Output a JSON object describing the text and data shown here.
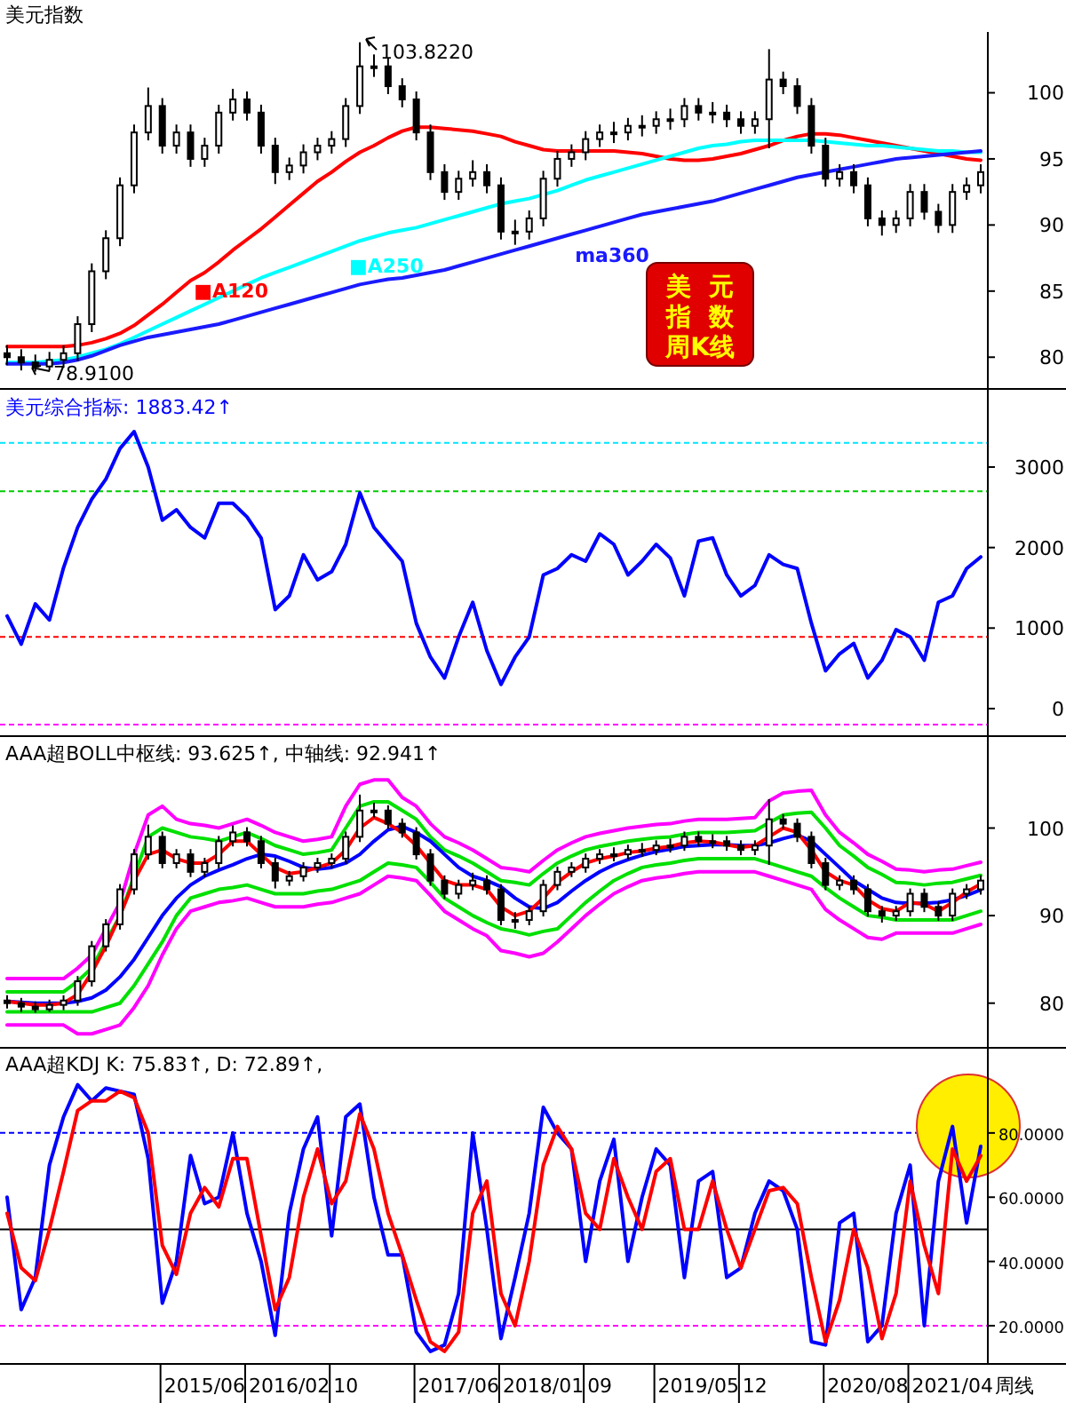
{
  "chart_data": [
    {
      "type": "candlestick",
      "title": "美元指数",
      "tick_labels": "y",
      "ylim": [
        77.6,
        104.6
      ],
      "yticks": [
        80,
        85,
        90,
        95,
        100
      ],
      "categories": [
        null,
        null,
        null,
        null,
        null,
        null,
        null,
        null,
        null,
        null,
        null,
        null,
        null,
        null,
        null,
        null,
        null,
        null,
        null,
        null,
        null,
        null,
        null,
        null,
        null,
        null,
        null,
        null,
        null,
        null,
        null,
        null,
        null,
        null,
        null,
        null,
        null,
        null,
        null,
        null,
        null,
        null,
        null,
        null,
        null,
        null,
        null,
        null,
        null,
        null,
        null,
        null,
        null,
        null,
        null,
        null,
        null,
        null,
        null,
        null,
        null,
        null,
        null,
        null,
        null,
        null,
        null,
        null,
        null,
        null
      ],
      "ohlc": [
        [
          80.3,
          80.9,
          79.4,
          80.0
        ],
        [
          80.0,
          80.6,
          79.0,
          79.6
        ],
        [
          79.6,
          80.2,
          78.91,
          79.3
        ],
        [
          79.3,
          80.4,
          79.0,
          79.8
        ],
        [
          79.8,
          80.9,
          79.2,
          80.3
        ],
        [
          80.3,
          83.1,
          79.7,
          82.5
        ],
        [
          82.5,
          87.1,
          81.9,
          86.5
        ],
        [
          86.5,
          89.6,
          85.9,
          89
        ],
        [
          89,
          93.6,
          88.4,
          93
        ],
        [
          93,
          97.6,
          92.4,
          97
        ],
        [
          97,
          100.4,
          96.4,
          99
        ],
        [
          99,
          99.6,
          95.4,
          96
        ],
        [
          96,
          97.6,
          95.4,
          97
        ],
        [
          97,
          97.6,
          94.4,
          95
        ],
        [
          95,
          96.6,
          94.4,
          96
        ],
        [
          96,
          99.1,
          95.4,
          98.5
        ],
        [
          98.5,
          100.3,
          97.9,
          99.5
        ],
        [
          99.5,
          100.1,
          97.9,
          98.5
        ],
        [
          98.5,
          99.1,
          95.4,
          96
        ],
        [
          96,
          96.6,
          93.1,
          94
        ],
        [
          94,
          95.1,
          93.4,
          94.5
        ],
        [
          94.5,
          96.1,
          93.9,
          95.5
        ],
        [
          95.5,
          96.6,
          94.9,
          96
        ],
        [
          96,
          97.1,
          95.4,
          96.5
        ],
        [
          96.5,
          99.6,
          95.9,
          99
        ],
        [
          99,
          103.822,
          98.4,
          102
        ],
        [
          102,
          102.9,
          101.2,
          102
        ],
        [
          102,
          102.6,
          99.9,
          100.5
        ],
        [
          100.5,
          101.1,
          98.9,
          99.5
        ],
        [
          99.5,
          100.1,
          96.4,
          97
        ],
        [
          97,
          97.6,
          93.4,
          94
        ],
        [
          94,
          94.6,
          91.9,
          92.5
        ],
        [
          92.5,
          94.1,
          91.9,
          93.5
        ],
        [
          93.5,
          94.9,
          92.9,
          94
        ],
        [
          94,
          94.6,
          92.4,
          93
        ],
        [
          93,
          93.6,
          88.9,
          89.5
        ],
        [
          89.5,
          90.4,
          88.5,
          89.5
        ],
        [
          89.5,
          91.1,
          88.9,
          90.5
        ],
        [
          90.5,
          94.1,
          89.9,
          93.5
        ],
        [
          93.5,
          95.6,
          92.9,
          95
        ],
        [
          95,
          96.1,
          94.4,
          95.5
        ],
        [
          95.5,
          97.1,
          94.9,
          96.5
        ],
        [
          96.5,
          97.6,
          95.9,
          97
        ],
        [
          97,
          97.8,
          96.2,
          97
        ],
        [
          97,
          98.1,
          96.4,
          97.5
        ],
        [
          97.5,
          98.3,
          96.7,
          97.5
        ],
        [
          97.5,
          98.6,
          96.9,
          98
        ],
        [
          98,
          98.8,
          97.2,
          98
        ],
        [
          98,
          99.6,
          97.4,
          99
        ],
        [
          99,
          99.6,
          97.9,
          98.5
        ],
        [
          98.5,
          99.3,
          97.7,
          98.5
        ],
        [
          98.5,
          99.1,
          97.4,
          98
        ],
        [
          98,
          98.6,
          96.9,
          97.5
        ],
        [
          97.5,
          98.6,
          96.9,
          98
        ],
        [
          98,
          103.3,
          95.8,
          101
        ],
        [
          101,
          101.6,
          99.9,
          100.5
        ],
        [
          100.5,
          101.1,
          98.4,
          99
        ],
        [
          99,
          99.6,
          95.4,
          96
        ],
        [
          96,
          96.6,
          92.9,
          93.5
        ],
        [
          93.5,
          94.6,
          92.9,
          94
        ],
        [
          94,
          94.6,
          92.4,
          93
        ],
        [
          93,
          93.6,
          89.9,
          90.5
        ],
        [
          90.5,
          91.1,
          89.2,
          90
        ],
        [
          90,
          91.1,
          89.4,
          90.5
        ],
        [
          90.5,
          93.1,
          89.9,
          92.5
        ],
        [
          92.5,
          93.1,
          90.4,
          91
        ],
        [
          91,
          91.6,
          89.4,
          90
        ],
        [
          90,
          93.1,
          89.4,
          92.5
        ],
        [
          92.5,
          93.6,
          91.9,
          93
        ],
        [
          93,
          94.6,
          92.4,
          94
        ]
      ],
      "series": [
        {
          "type": "line",
          "name": "■A120",
          "color": "#ff0000",
          "values": [
            80.8,
            80.8,
            80.8,
            80.8,
            80.8,
            80.9,
            81.1,
            81.4,
            81.8,
            82.4,
            83.2,
            84.0,
            84.9,
            85.8,
            86.4,
            87.2,
            88.1,
            88.9,
            89.7,
            90.6,
            91.5,
            92.4,
            93.3,
            94.0,
            94.8,
            95.5,
            96.0,
            96.6,
            97.1,
            97.4,
            97.4,
            97.3,
            97.2,
            97.1,
            96.9,
            96.7,
            96.3,
            96.0,
            95.7,
            95.6,
            95.6,
            95.6,
            95.6,
            95.6,
            95.5,
            95.4,
            95.2,
            95.0,
            94.9,
            94.9,
            95.0,
            95.2,
            95.4,
            95.7,
            96.0,
            96.4,
            96.7,
            96.9,
            96.9,
            96.8,
            96.6,
            96.4,
            96.2,
            96.0,
            95.8,
            95.6,
            95.4,
            95.2,
            95.0,
            94.9
          ]
        },
        {
          "type": "line",
          "name": "■A250",
          "color": "#00ffff",
          "values": [
            79.6,
            79.6,
            79.6,
            79.7,
            79.8,
            80.0,
            80.3,
            80.6,
            81.0,
            81.5,
            82.0,
            82.5,
            83.0,
            83.5,
            84.0,
            84.5,
            85.0,
            85.5,
            86.0,
            86.4,
            86.8,
            87.2,
            87.6,
            88.0,
            88.4,
            88.8,
            89.1,
            89.4,
            89.6,
            89.8,
            90.1,
            90.4,
            90.7,
            91.0,
            91.3,
            91.6,
            91.8,
            92.0,
            92.3,
            92.6,
            93.0,
            93.4,
            93.7,
            94.0,
            94.3,
            94.6,
            94.9,
            95.2,
            95.5,
            95.8,
            96.0,
            96.1,
            96.3,
            96.4,
            96.4,
            96.4,
            96.4,
            96.4,
            96.3,
            96.2,
            96.1,
            96.0,
            96.0,
            95.9,
            95.8,
            95.7,
            95.6,
            95.6,
            95.5,
            95.5
          ]
        },
        {
          "type": "line",
          "name": "ma360",
          "color": "#1a1aff",
          "values": [
            79.5,
            79.5,
            79.5,
            79.5,
            79.6,
            79.8,
            80.1,
            80.5,
            80.9,
            81.2,
            81.5,
            81.7,
            81.9,
            82.1,
            82.3,
            82.5,
            82.8,
            83.1,
            83.4,
            83.7,
            84.0,
            84.3,
            84.6,
            84.9,
            85.2,
            85.5,
            85.7,
            85.9,
            86.0,
            86.2,
            86.4,
            86.6,
            86.9,
            87.2,
            87.5,
            87.8,
            88.1,
            88.4,
            88.7,
            89.0,
            89.3,
            89.6,
            89.9,
            90.2,
            90.5,
            90.8,
            91.0,
            91.2,
            91.4,
            91.6,
            91.8,
            92.1,
            92.4,
            92.7,
            93.0,
            93.3,
            93.6,
            93.8,
            94.0,
            94.2,
            94.4,
            94.6,
            94.8,
            95.0,
            95.1,
            95.2,
            95.3,
            95.4,
            95.5,
            95.6
          ]
        }
      ],
      "annotations": [
        "103.8220",
        "78.9100",
        "美元指数周K线"
      ]
    },
    {
      "type": "line",
      "title": "美元综合指标: 1883.42↑",
      "tick_labels": "y",
      "ylim": [
        -342,
        3970
      ],
      "yticks": [
        0,
        1000,
        2000,
        3000
      ],
      "categories": [
        null,
        null,
        null,
        null,
        null,
        null,
        null,
        null,
        null,
        null,
        null,
        null,
        null,
        null,
        null,
        null,
        null,
        null,
        null,
        null,
        null,
        null,
        null,
        null,
        null,
        null,
        null,
        null,
        null,
        null,
        null,
        null,
        null,
        null,
        null,
        null,
        null,
        null,
        null,
        null,
        null,
        null,
        null,
        null,
        null,
        null,
        null,
        null,
        null,
        null,
        null,
        null,
        null,
        null,
        null,
        null,
        null,
        null,
        null,
        null,
        null,
        null,
        null,
        null,
        null,
        null,
        null,
        null,
        null,
        null
      ],
      "series": [
        {
          "color": "#0000ff",
          "values": [
            1150,
            800,
            1300,
            1100,
            1750,
            2250,
            2600,
            2850,
            3230,
            3440,
            3000,
            2340,
            2470,
            2250,
            2120,
            2550,
            2550,
            2380,
            2120,
            1230,
            1400,
            1910,
            1600,
            1700,
            2040,
            2680,
            2250,
            2040,
            1830,
            1060,
            640,
            380,
            890,
            1320,
            720,
            300,
            640,
            890,
            1660,
            1740,
            1910,
            1830,
            2170,
            2040,
            1660,
            1830,
            2040,
            1870,
            1400,
            2080,
            2120,
            1660,
            1400,
            1530,
            1910,
            1790,
            1740,
            1060,
            470,
            680,
            810,
            380,
            600,
            980,
            890,
            600,
            1320,
            1400,
            1740,
            1883.42
          ]
        }
      ],
      "ref_lines": [
        {
          "axis": "y",
          "value": 3300,
          "color": "#00e5ff",
          "line_style": "dashed"
        },
        {
          "axis": "y",
          "value": 2700,
          "color": "#00cc00",
          "line_style": "dashed"
        },
        {
          "axis": "y",
          "value": 890,
          "color": "#ff0000",
          "line_style": "dashed"
        },
        {
          "axis": "y",
          "value": -200,
          "color": "#ff00ff",
          "line_style": "dashed"
        }
      ]
    },
    {
      "type": "candlestick",
      "title": "AAA超BOLL中枢线: 93.625↑, 中轴线: 92.941↑",
      "tick_labels": "y",
      "ylim": [
        74.9,
        110.5
      ],
      "yticks": [
        80,
        90,
        100
      ],
      "categories": [
        null,
        null,
        null,
        null,
        null,
        null,
        null,
        null,
        null,
        null,
        null,
        null,
        null,
        null,
        null,
        null,
        null,
        null,
        null,
        null,
        null,
        null,
        null,
        null,
        null,
        null,
        null,
        null,
        null,
        null,
        null,
        null,
        null,
        null,
        null,
        null,
        null,
        null,
        null,
        null,
        null,
        null,
        null,
        null,
        null,
        null,
        null,
        null,
        null,
        null,
        null,
        null,
        null,
        null,
        null,
        null,
        null,
        null,
        null,
        null,
        null,
        null,
        null,
        null,
        null,
        null,
        null,
        null,
        null,
        null
      ],
      "ohlc": [
        [
          80.3,
          80.9,
          79.4,
          80.0
        ],
        [
          80.0,
          80.6,
          79.0,
          79.6
        ],
        [
          79.6,
          80.2,
          78.91,
          79.3
        ],
        [
          79.3,
          80.4,
          79.0,
          79.8
        ],
        [
          79.8,
          80.9,
          79.2,
          80.3
        ],
        [
          80.3,
          83.1,
          79.7,
          82.5
        ],
        [
          82.5,
          87.1,
          81.9,
          86.5
        ],
        [
          86.5,
          89.6,
          85.9,
          89
        ],
        [
          89,
          93.6,
          88.4,
          93
        ],
        [
          93,
          97.6,
          92.4,
          97
        ],
        [
          97,
          100.4,
          96.4,
          99
        ],
        [
          99,
          99.6,
          95.4,
          96
        ],
        [
          96,
          97.6,
          95.4,
          97
        ],
        [
          97,
          97.6,
          94.4,
          95
        ],
        [
          95,
          96.6,
          94.4,
          96
        ],
        [
          96,
          99.1,
          95.4,
          98.5
        ],
        [
          98.5,
          100.3,
          97.9,
          99.5
        ],
        [
          99.5,
          100.1,
          97.9,
          98.5
        ],
        [
          98.5,
          99.1,
          95.4,
          96
        ],
        [
          96,
          96.6,
          93.1,
          94
        ],
        [
          94,
          95.1,
          93.4,
          94.5
        ],
        [
          94.5,
          96.1,
          93.9,
          95.5
        ],
        [
          95.5,
          96.6,
          94.9,
          96
        ],
        [
          96,
          97.1,
          95.4,
          96.5
        ],
        [
          96.5,
          99.6,
          95.9,
          99
        ],
        [
          99,
          103.822,
          98.4,
          102
        ],
        [
          102,
          102.9,
          101.2,
          102
        ],
        [
          102,
          102.6,
          99.9,
          100.5
        ],
        [
          100.5,
          101.1,
          98.9,
          99.5
        ],
        [
          99.5,
          100.1,
          96.4,
          97
        ],
        [
          97,
          97.6,
          93.4,
          94
        ],
        [
          94,
          94.6,
          91.9,
          92.5
        ],
        [
          92.5,
          94.1,
          91.9,
          93.5
        ],
        [
          93.5,
          94.9,
          92.9,
          94
        ],
        [
          94,
          94.6,
          92.4,
          93
        ],
        [
          93,
          93.6,
          88.9,
          89.5
        ],
        [
          89.5,
          90.4,
          88.5,
          89.5
        ],
        [
          89.5,
          91.1,
          88.9,
          90.5
        ],
        [
          90.5,
          94.1,
          89.9,
          93.5
        ],
        [
          93.5,
          95.6,
          92.9,
          95
        ],
        [
          95,
          96.1,
          94.4,
          95.5
        ],
        [
          95.5,
          97.1,
          94.9,
          96.5
        ],
        [
          96.5,
          97.6,
          95.9,
          97
        ],
        [
          97,
          97.8,
          96.2,
          97
        ],
        [
          97,
          98.1,
          96.4,
          97.5
        ],
        [
          97.5,
          98.3,
          96.7,
          97.5
        ],
        [
          97.5,
          98.6,
          96.9,
          98
        ],
        [
          98,
          98.8,
          97.2,
          98
        ],
        [
          98,
          99.6,
          97.4,
          99
        ],
        [
          99,
          99.6,
          97.9,
          98.5
        ],
        [
          98.5,
          99.3,
          97.7,
          98.5
        ],
        [
          98.5,
          99.1,
          97.4,
          98
        ],
        [
          98,
          98.6,
          96.9,
          97.5
        ],
        [
          97.5,
          98.6,
          96.9,
          98
        ],
        [
          98,
          103.3,
          95.8,
          101
        ],
        [
          101,
          101.6,
          99.9,
          100.5
        ],
        [
          100.5,
          101.1,
          98.4,
          99
        ],
        [
          99,
          99.6,
          95.4,
          96
        ],
        [
          96,
          96.6,
          92.9,
          93.5
        ],
        [
          93.5,
          94.6,
          92.9,
          94
        ],
        [
          94,
          94.6,
          92.4,
          93
        ],
        [
          93,
          93.6,
          89.9,
          90.5
        ],
        [
          90.5,
          91.1,
          89.2,
          90
        ],
        [
          90,
          91.1,
          89.4,
          90.5
        ],
        [
          90.5,
          93.1,
          89.9,
          92.5
        ],
        [
          92.5,
          93.1,
          90.4,
          91
        ],
        [
          91,
          91.6,
          89.4,
          90
        ],
        [
          90,
          93.1,
          89.4,
          92.5
        ],
        [
          92.5,
          93.6,
          91.9,
          93
        ],
        [
          93,
          94.6,
          92.4,
          94
        ]
      ],
      "series": [
        {
          "type": "line",
          "color": "#ff00ff",
          "values": [
            82.8,
            82.8,
            82.8,
            82.8,
            82.8,
            84,
            85.5,
            88.5,
            91.5,
            97,
            101.5,
            102.5,
            101,
            100.5,
            100.3,
            100,
            100.5,
            101,
            100.3,
            99.5,
            99,
            98.5,
            98.7,
            99,
            102.5,
            105,
            105.5,
            105.5,
            103.5,
            102.5,
            100.5,
            99,
            98.3,
            97.5,
            96.5,
            95.5,
            95.3,
            95,
            96.3,
            97.5,
            98.3,
            99,
            99.4,
            99.7,
            100,
            100.2,
            100.4,
            100.5,
            100.8,
            101,
            101,
            101,
            101.1,
            101.2,
            103.1,
            104,
            104.2,
            104.3,
            101.5,
            99.5,
            98.3,
            97,
            96.2,
            95.3,
            95.2,
            95,
            95.2,
            95.3,
            95.7,
            96.1
          ]
        },
        {
          "type": "line",
          "color": "#00e000",
          "values": [
            81.3,
            81.3,
            81.3,
            81.3,
            81.3,
            82.5,
            84,
            87,
            90,
            94.5,
            99,
            100,
            99.5,
            99,
            98.8,
            98.5,
            99,
            99.5,
            98.8,
            98,
            97.5,
            97,
            97.2,
            97.5,
            100,
            102.5,
            103,
            103,
            102,
            101,
            99,
            97.5,
            96.8,
            96,
            95,
            94,
            93.8,
            93.5,
            94.8,
            96,
            96.8,
            97.5,
            97.9,
            98.2,
            98.5,
            98.7,
            98.9,
            99,
            99.3,
            99.5,
            99.5,
            99.5,
            99.6,
            99.7,
            100.6,
            101.5,
            101.7,
            101.8,
            100,
            98,
            96.8,
            95.5,
            94.7,
            93.8,
            93.7,
            93.5,
            93.7,
            93.8,
            94.2,
            94.6
          ]
        },
        {
          "type": "line",
          "color": "#00e000",
          "values": [
            79.0,
            79.0,
            79.0,
            79.0,
            79.0,
            79.0,
            79.0,
            79.5,
            80,
            82,
            84.5,
            87,
            90,
            92,
            92.5,
            93,
            93.2,
            93.5,
            93,
            92.5,
            92.5,
            92.5,
            92.8,
            93,
            93.5,
            94,
            95,
            96,
            95.8,
            95.5,
            93.8,
            92,
            91,
            90,
            89.2,
            88.5,
            88.2,
            87.8,
            88.2,
            88.5,
            90,
            91.5,
            92.8,
            94,
            94.8,
            95.5,
            95.8,
            96,
            96.3,
            96.5,
            96.5,
            96.5,
            96.5,
            96.5,
            96,
            95.5,
            95,
            94.5,
            93.2,
            92,
            91,
            90,
            89.8,
            89.5,
            89.5,
            89.5,
            89.5,
            89.5,
            90,
            90.5
          ]
        },
        {
          "type": "line",
          "color": "#ff00ff",
          "values": [
            77.5,
            77.5,
            77.5,
            77.5,
            77.5,
            76.5,
            76.5,
            77,
            77.5,
            79.5,
            82,
            85.5,
            88.5,
            90.5,
            91,
            91.5,
            91.7,
            92,
            91.5,
            91,
            91,
            91,
            91.3,
            91.5,
            92,
            92.5,
            93.5,
            94.5,
            94.3,
            94,
            92.3,
            90.5,
            89.5,
            88.5,
            87.7,
            86,
            85.7,
            85.3,
            85.7,
            87,
            88.5,
            90,
            91.3,
            92.5,
            93.3,
            94,
            94.3,
            94.5,
            94.8,
            95,
            95,
            95,
            95,
            95,
            94.5,
            94,
            93.5,
            93,
            90.7,
            89.5,
            88.5,
            87.5,
            87.3,
            88,
            88,
            88,
            88,
            88,
            88.5,
            89
          ]
        },
        {
          "type": "line",
          "color": "#0000ff",
          "values": [
            80.2,
            80.1,
            80.0,
            80.0,
            80.0,
            80.2,
            80.6,
            81.5,
            83,
            85,
            87.5,
            90,
            92,
            93.5,
            94.5,
            95.2,
            95.8,
            96.5,
            97,
            96.8,
            96.2,
            95.5,
            95.3,
            95.5,
            96,
            97,
            98.5,
            99.8,
            100.2,
            99.5,
            98.5,
            97,
            95.5,
            94.5,
            94,
            93.3,
            92,
            91,
            90.8,
            91.5,
            92.8,
            94,
            95,
            95.8,
            96.4,
            96.9,
            97.3,
            97.6,
            97.9,
            98,
            98.1,
            98.1,
            98,
            98,
            98.3,
            98.8,
            99.2,
            98.5,
            97,
            95.5,
            94,
            93,
            92,
            91.5,
            91.4,
            91.4,
            91.5,
            91.8,
            92.3,
            92.941
          ]
        },
        {
          "type": "line",
          "color": "#ff0000",
          "values": [
            80.2,
            80.0,
            79.8,
            79.8,
            80.0,
            81.0,
            83.5,
            86.5,
            90,
            94,
            97,
            97.5,
            96.5,
            96,
            96,
            97,
            98.5,
            98.5,
            97,
            95.5,
            94.8,
            95,
            95.5,
            96,
            97.5,
            100,
            101.2,
            100.5,
            99.5,
            98,
            96,
            94,
            93.5,
            93.5,
            93,
            91,
            90,
            90.5,
            92,
            93.8,
            95,
            96,
            96.5,
            96.8,
            97.2,
            97.4,
            97.7,
            97.9,
            98.3,
            98.5,
            98.4,
            98.1,
            97.8,
            98,
            99,
            100,
            99.5,
            97.5,
            95,
            94,
            93.5,
            91.8,
            90.8,
            90.5,
            91.5,
            91.3,
            90.5,
            91.5,
            92.7,
            93.625
          ]
        }
      ]
    },
    {
      "type": "line",
      "title": "AAA超KDJ  K: 75.83↑, D: 72.89↑,",
      "xlabel": "周线",
      "ylim": [
        8.1,
        106.5
      ],
      "yticks": [
        {
          "value": 20,
          "label": "20.0000"
        },
        {
          "value": 40,
          "label": "40.0000"
        },
        {
          "value": 60,
          "label": "60.0000"
        },
        {
          "value": 80,
          "label": "80.0000"
        }
      ],
      "categories": [
        null,
        null,
        null,
        null,
        null,
        null,
        null,
        null,
        null,
        null,
        null,
        null,
        null,
        null,
        "2015/06",
        null,
        null,
        null,
        null,
        null,
        "2016/02",
        null,
        null,
        null,
        "10",
        null,
        null,
        null,
        null,
        null,
        null,
        null,
        "2017/06",
        null,
        null,
        null,
        null,
        null,
        "2018/01",
        null,
        null,
        null,
        "09",
        null,
        null,
        null,
        null,
        null,
        null,
        "2019/05",
        null,
        null,
        null,
        "12",
        null,
        null,
        null,
        null,
        null,
        null,
        null,
        "2020/08",
        null,
        null,
        null,
        null,
        null,
        "2021/04",
        null,
        null
      ],
      "series": [
        {
          "color": "#0000ff",
          "values": [
            60,
            25,
            35,
            70,
            85,
            95,
            90,
            94,
            93,
            92,
            72,
            27,
            40,
            73,
            58,
            60,
            80,
            55,
            40,
            17,
            55,
            75,
            85,
            48,
            85,
            89,
            60,
            42,
            42,
            18,
            12,
            14,
            30,
            80,
            50,
            16,
            35,
            55,
            88,
            80,
            75,
            40,
            65,
            78,
            40,
            60,
            75,
            70,
            35,
            65,
            68,
            35,
            38,
            55,
            65,
            62,
            50,
            15,
            14,
            52,
            55,
            15,
            20,
            55,
            70,
            20,
            65,
            82,
            52,
            75.83
          ]
        },
        {
          "color": "#ff0000",
          "values": [
            55,
            38,
            34,
            50,
            68,
            87,
            90,
            90,
            93,
            91,
            80,
            45,
            36,
            55,
            63,
            57,
            72,
            72,
            48,
            25,
            35,
            60,
            75,
            58,
            65,
            86,
            75,
            55,
            42,
            28,
            15,
            12,
            18,
            55,
            65,
            30,
            20,
            40,
            70,
            82,
            75,
            55,
            50,
            72,
            60,
            50,
            68,
            72,
            50,
            50,
            65,
            50,
            38,
            50,
            62,
            63,
            58,
            35,
            15,
            28,
            50,
            38,
            16,
            30,
            65,
            45,
            30,
            75,
            65,
            72.89
          ]
        }
      ],
      "ref_lines": [
        {
          "axis": "y",
          "value": 80,
          "color": "#0000ff",
          "line_style": "dashed"
        },
        {
          "axis": "y",
          "value": 50,
          "color": "#000000",
          "line_style": "solid"
        },
        {
          "axis": "y",
          "value": 20,
          "color": "#ff00ff",
          "line_style": "dashed"
        }
      ]
    }
  ]
}
